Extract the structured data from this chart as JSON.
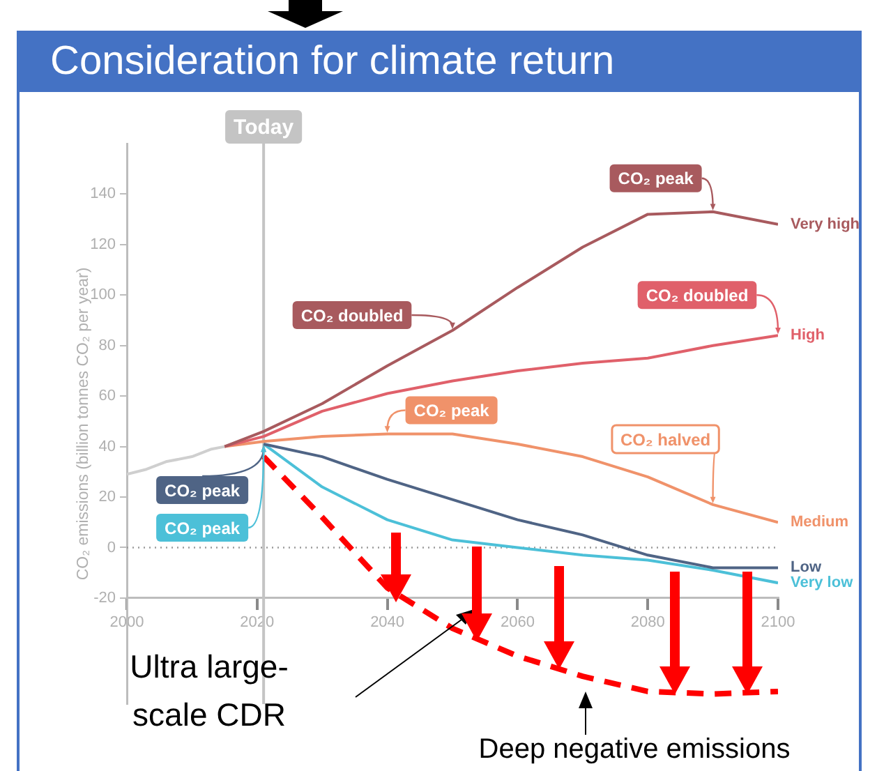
{
  "chart_data": {
    "type": "line",
    "title": "Consideration for climate return",
    "ylabel": "CO₂ emissions (billion tonnes CO₂ per year)",
    "xlim": [
      2000,
      2100
    ],
    "xticks": [
      2000,
      2020,
      2040,
      2060,
      2080,
      2100
    ],
    "ylim": [
      -62,
      160
    ],
    "yticks": [
      -20,
      0,
      20,
      40,
      60,
      80,
      100,
      120,
      140
    ],
    "series": [
      {
        "color": "#cfcfcf",
        "x": [
          2000,
          2003,
          2006,
          2010,
          2013,
          2015
        ],
        "values": [
          29,
          31,
          34,
          36,
          39,
          40
        ]
      },
      {
        "name": "Very high",
        "color": "#a85a5e",
        "x": [
          2015,
          2021,
          2030,
          2040,
          2050,
          2060,
          2070,
          2080,
          2090,
          2100
        ],
        "values": [
          40,
          46,
          57,
          72,
          86,
          103,
          119,
          132,
          133,
          128
        ]
      },
      {
        "name": "High",
        "color": "#e0606a",
        "x": [
          2015,
          2021,
          2030,
          2040,
          2050,
          2060,
          2070,
          2080,
          2090,
          2100
        ],
        "values": [
          40,
          44,
          54,
          61,
          66,
          70,
          73,
          75,
          80,
          84
        ]
      },
      {
        "name": "Medium",
        "color": "#f0926a",
        "x": [
          2015,
          2021,
          2030,
          2040,
          2050,
          2060,
          2070,
          2080,
          2090,
          2100
        ],
        "values": [
          40,
          42,
          44,
          45,
          45,
          41,
          36,
          28,
          17,
          10
        ]
      },
      {
        "name": "Low",
        "color": "#4f6485",
        "x": [
          2021,
          2030,
          2040,
          2050,
          2060,
          2070,
          2080,
          2090,
          2100
        ],
        "values": [
          41,
          36,
          27,
          19,
          11,
          5,
          -3,
          -8,
          -8
        ]
      },
      {
        "name": "Very low",
        "color": "#4cc0d8",
        "x": [
          2021,
          2030,
          2040,
          2050,
          2060,
          2070,
          2080,
          2090,
          2100
        ],
        "values": [
          41,
          24,
          11,
          3,
          0,
          -3,
          -5,
          -9,
          -14
        ]
      },
      {
        "color": "#ff0000",
        "line_style": "dashed",
        "x": [
          2021,
          2030,
          2040,
          2050,
          2060,
          2070,
          2080,
          2090,
          2100
        ],
        "values": [
          36,
          12,
          -16,
          -32,
          -43,
          -51,
          -57,
          -58,
          -57
        ]
      }
    ],
    "ref_lines": [
      {
        "axis": "y",
        "value": 0,
        "line_style": "dotted",
        "color": "#9a9a9a"
      },
      {
        "axis": "x",
        "value": 2021,
        "label": "Today",
        "color": "#c4c4c4"
      }
    ],
    "annotations": [
      {
        "text": "CO₂ peak",
        "x": 2090,
        "y": 133
      },
      {
        "text": "CO₂ doubled",
        "x": 2050,
        "y": 86
      },
      {
        "text": "CO₂ doubled",
        "x": 2100,
        "y": 84
      },
      {
        "text": "CO₂ peak",
        "x": 2040,
        "y": 45
      },
      {
        "text": "CO₂ halved",
        "x": 2090,
        "y": 17
      },
      {
        "text": "CO₂ peak",
        "x": 2021,
        "y": 41
      },
      {
        "text": "CO₂ peak",
        "x": 2021,
        "y": 41
      },
      "Ultra large-scale CDR",
      "Deep negative emissions"
    ]
  }
}
